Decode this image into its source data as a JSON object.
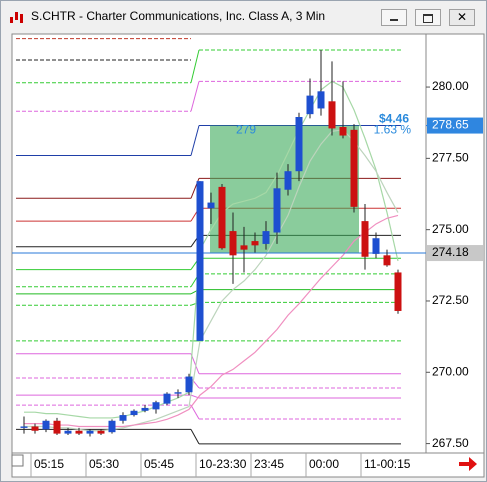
{
  "window": {
    "title": "S.CHTR - Charter Communications, Inc. Class A, 3 Min"
  },
  "chart_data": {
    "type": "candlestick",
    "categories": [
      null,
      "05:15",
      null,
      null,
      null,
      null,
      "05:30",
      null,
      null,
      null,
      null,
      "05:45",
      null,
      null,
      null,
      null,
      "10-23:30",
      null,
      null,
      null,
      null,
      "23:45",
      null,
      null,
      null,
      null,
      "00:00",
      null,
      null,
      null,
      null,
      "11-00:15",
      null,
      null,
      null
    ],
    "open": [
      268.05,
      268.1,
      268.0,
      268.3,
      267.85,
      267.95,
      267.85,
      267.95,
      267.9,
      268.3,
      268.5,
      268.65,
      268.7,
      268.9,
      269.25,
      269.3,
      271.1,
      275.75,
      276.5,
      274.95,
      274.45,
      274.6,
      274.5,
      274.9,
      276.4,
      277.05,
      279.05,
      279.25,
      279.5,
      278.6,
      278.5,
      275.3,
      274.15,
      274.1,
      273.5
    ],
    "high": [
      268.45,
      268.2,
      268.35,
      268.4,
      268.05,
      268.05,
      268.0,
      268.0,
      268.35,
      268.6,
      268.7,
      268.85,
      269.0,
      269.3,
      269.4,
      269.95,
      276.7,
      276.3,
      276.6,
      275.6,
      275.1,
      274.9,
      275.3,
      277.0,
      277.3,
      279.1,
      280.3,
      281.3,
      280.9,
      280.2,
      278.7,
      275.9,
      274.9,
      274.3,
      273.6
    ],
    "low": [
      267.85,
      267.85,
      267.9,
      267.8,
      267.8,
      267.8,
      267.75,
      267.8,
      267.85,
      268.2,
      268.45,
      268.6,
      268.55,
      268.85,
      269.1,
      269.2,
      271.1,
      275.2,
      274.3,
      273.1,
      273.5,
      274.2,
      274.3,
      274.5,
      276.2,
      276.7,
      278.9,
      279.0,
      278.3,
      278.2,
      275.6,
      273.6,
      274.0,
      273.7,
      272.05
    ],
    "close": [
      268.1,
      267.95,
      268.3,
      267.85,
      267.95,
      267.85,
      267.95,
      267.85,
      268.3,
      268.5,
      268.65,
      268.75,
      268.95,
      269.25,
      269.3,
      269.85,
      276.7,
      275.95,
      274.35,
      274.1,
      274.3,
      274.45,
      274.95,
      276.45,
      277.05,
      278.95,
      279.7,
      279.85,
      278.55,
      278.3,
      275.8,
      274.05,
      274.7,
      273.75,
      272.15
    ],
    "up_color": "#1e4fd0",
    "down_color": "#cc1111",
    "ylim": [
      267.17,
      281.86
    ],
    "yticks": [
      {
        "value": 267.5,
        "label": "267.50"
      },
      {
        "value": 270,
        "label": "270.00"
      },
      {
        "value": 272.5,
        "label": "272.50"
      },
      {
        "value": 275,
        "label": "275.00"
      },
      {
        "value": 277.5,
        "label": "277.50"
      },
      {
        "value": 280,
        "label": "280.00"
      }
    ],
    "overlays": [
      {
        "color": "#a6d8a6",
        "values": [
          268.6,
          268.6,
          268.55,
          268.55,
          268.5,
          268.45,
          268.4,
          268.4,
          268.4,
          268.45,
          268.55,
          268.65,
          268.8,
          268.95,
          269.1,
          269.3,
          274.3,
          275.0,
          275.6,
          275.9,
          276.0,
          276.1,
          276.3,
          276.9,
          277.7,
          278.5,
          279.2,
          279.9,
          280.2,
          280.0,
          279.2,
          278.2,
          277.1,
          275.6,
          273.9
        ]
      },
      {
        "color": "#bcd4bc",
        "values": [
          268.1,
          268.1,
          268.1,
          268.05,
          268.05,
          268.0,
          267.95,
          267.95,
          268.0,
          268.05,
          268.15,
          268.25,
          268.35,
          268.5,
          268.65,
          268.8,
          271.1,
          271.8,
          272.5,
          272.9,
          273.2,
          273.6,
          274.1,
          274.8,
          275.5,
          276.5,
          277.4,
          278.0,
          278.45,
          278.5,
          278.1,
          277.6,
          277.05,
          276.3,
          275.6
        ]
      },
      {
        "color": "#f08fc0",
        "values": [
          268.2,
          268.2,
          268.2,
          268.15,
          268.15,
          268.1,
          268.1,
          268.1,
          268.1,
          268.1,
          268.15,
          268.2,
          268.25,
          268.35,
          268.5,
          268.7,
          269.2,
          269.5,
          269.9,
          270.1,
          270.4,
          270.7,
          271.1,
          271.5,
          272.0,
          272.4,
          272.85,
          273.3,
          273.7,
          274.1,
          274.6,
          274.9,
          275.2,
          275.4,
          275.5
        ]
      }
    ],
    "levels": [
      {
        "color": "#c0392b",
        "dash": true,
        "values": [
          281.7,
          null
        ]
      },
      {
        "color": "#222222",
        "dash": true,
        "values": [
          280.95,
          null
        ]
      },
      {
        "color": "#33cc33",
        "dash": true,
        "values": [
          280.15,
          281.3
        ]
      },
      {
        "color": "#dd66dd",
        "dash": true,
        "values": [
          279.15,
          280.2
        ]
      },
      {
        "color": "#1f3fa8",
        "dash": false,
        "values": [
          277.6,
          278.65
        ]
      },
      {
        "color": "#8b1a1a",
        "dash": false,
        "values": [
          276.1,
          276.8
        ]
      },
      {
        "color": "#cc3333",
        "dash": false,
        "values": [
          275.3,
          275.75
        ]
      },
      {
        "color": "#222222",
        "dash": false,
        "values": [
          274.4,
          274.8
        ]
      },
      {
        "color": "#33cc33",
        "dash": false,
        "values": [
          273.6,
          274.0
        ]
      },
      {
        "color": "#33cc33",
        "dash": true,
        "values": [
          273.0,
          273.45
        ]
      },
      {
        "color": "#22bb22",
        "dash": false,
        "values": [
          272.75,
          272.9
        ]
      },
      {
        "color": "#33cc33",
        "dash": true,
        "values": [
          272.35,
          272.45
        ]
      },
      {
        "color": "#33cc33",
        "dash": true,
        "values": [
          271.1,
          271.1
        ]
      },
      {
        "color": "#dd66dd",
        "dash": false,
        "values": [
          270.65,
          269.95
        ]
      },
      {
        "color": "#dd66dd",
        "dash": true,
        "values": [
          269.8,
          269.45
        ]
      },
      {
        "color": "#dd66dd",
        "dash": false,
        "values": [
          269.2,
          269.1
        ]
      },
      {
        "color": "#dd66dd",
        "dash": true,
        "values": [
          268.85,
          268.36
        ]
      },
      {
        "color": "#222222",
        "dash": false,
        "values": [
          268.0,
          267.49
        ]
      }
    ],
    "last_price": 274.18,
    "marker_price": 278.65,
    "measure": {
      "from": 274.19,
      "to": 278.65,
      "start": 17,
      "end": 30,
      "label": "279",
      "change": "$4.46",
      "percent": "1.63 %"
    }
  }
}
